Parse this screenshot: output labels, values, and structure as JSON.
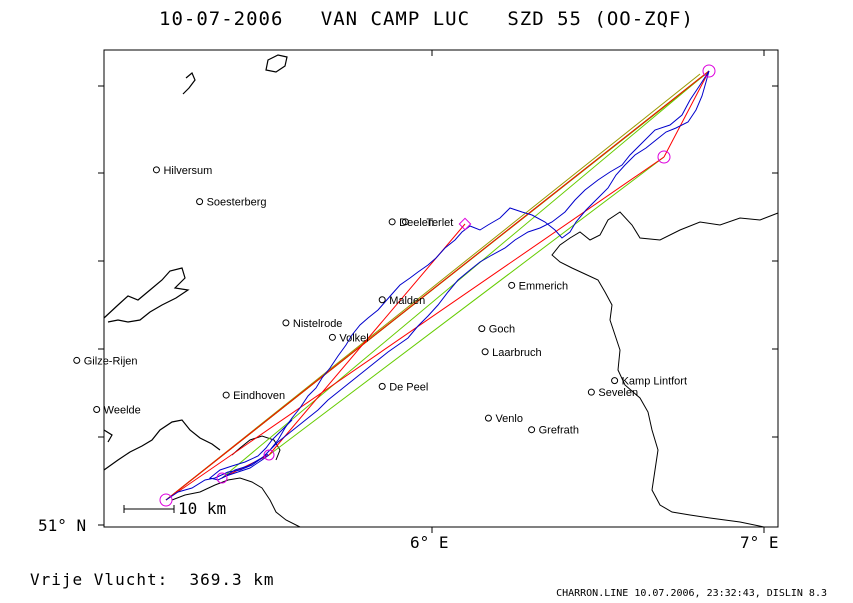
{
  "title": "10-07-2006   VAN CAMP LUC   SZD 55 (OO-ZQF)",
  "footer": {
    "distance_label": "Vrije Vlucht:  369.3 km",
    "info": "CHARRON.LINE 10.07.2006, 23:32:43, DISLIN 8.3"
  },
  "axes": {
    "y_label": "51° N",
    "x_labels": [
      "6° E",
      "7° E"
    ]
  },
  "scale_bar": "10 km",
  "cities": [
    {
      "name": "Hilversum",
      "lon": 5.17,
      "lat": 52.23
    },
    {
      "name": "Soesterberg",
      "lon": 5.3,
      "lat": 52.12
    },
    {
      "name": "Deelen",
      "lon": 5.88,
      "lat": 52.05
    },
    {
      "name": "Terlet",
      "lon": 5.92,
      "lat": 52.05
    },
    {
      "name": "Emmerich",
      "lon": 6.24,
      "lat": 51.83
    },
    {
      "name": "Malden",
      "lon": 5.85,
      "lat": 51.78
    },
    {
      "name": "Nistelrode",
      "lon": 5.56,
      "lat": 51.7
    },
    {
      "name": "Volkel",
      "lon": 5.7,
      "lat": 51.65
    },
    {
      "name": "Goch",
      "lon": 6.15,
      "lat": 51.68
    },
    {
      "name": "Laarbruch",
      "lon": 6.16,
      "lat": 51.6
    },
    {
      "name": "Gilze-Rijen",
      "lon": 4.93,
      "lat": 51.57
    },
    {
      "name": "Kamp Lintfort",
      "lon": 6.55,
      "lat": 51.5
    },
    {
      "name": "De Peel",
      "lon": 5.85,
      "lat": 51.48
    },
    {
      "name": "Sevelen",
      "lon": 6.48,
      "lat": 51.46
    },
    {
      "name": "Eindhoven",
      "lon": 5.38,
      "lat": 51.45
    },
    {
      "name": "Weelde",
      "lon": 4.99,
      "lat": 51.4
    },
    {
      "name": "Venlo",
      "lon": 6.17,
      "lat": 51.37
    },
    {
      "name": "Grefrath",
      "lon": 6.3,
      "lat": 51.33
    }
  ],
  "colors": {
    "track": "#0000cc",
    "task_red": "#ff0000",
    "task_green": "#66cc00",
    "task_olive": "#999900",
    "turnpoint": "#dd00dd"
  }
}
